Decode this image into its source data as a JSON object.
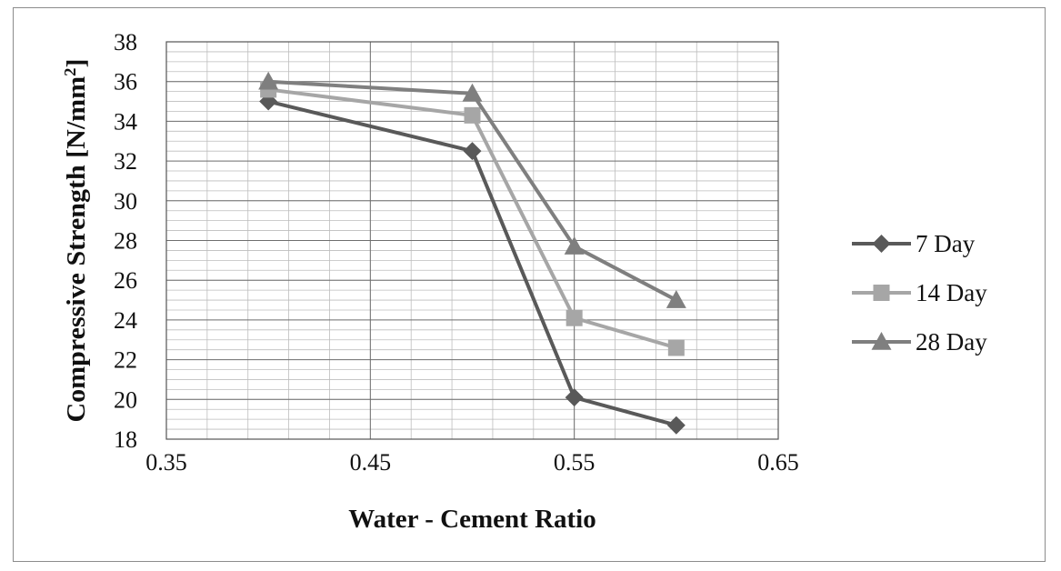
{
  "chart_data": {
    "type": "line",
    "title": "",
    "xlabel": "Water - Cement Ratio",
    "ylabel_main": "Compressive Strength [N/mm",
    "ylabel_sup": "2",
    "ylabel_close": "]",
    "xlim": [
      0.35,
      0.65
    ],
    "ylim": [
      18,
      38
    ],
    "x_ticks": [
      "0.35",
      "0.45",
      "0.55",
      "0.65"
    ],
    "y_ticks": [
      "18",
      "20",
      "22",
      "24",
      "26",
      "28",
      "30",
      "32",
      "34",
      "36",
      "38"
    ],
    "grid": true,
    "legend_position": "right",
    "x": [
      0.4,
      0.5,
      0.55,
      0.6
    ],
    "series": [
      {
        "name": "7 Day",
        "marker": "diamond",
        "color": "#595959",
        "values": [
          35.0,
          32.5,
          20.1,
          18.7
        ]
      },
      {
        "name": "14 Day",
        "marker": "square",
        "color": "#a6a6a6",
        "values": [
          35.6,
          34.3,
          24.1,
          22.6
        ]
      },
      {
        "name": "28 Day",
        "marker": "triangle",
        "color": "#7f7f7f",
        "values": [
          36.0,
          35.4,
          27.7,
          25.0
        ]
      }
    ]
  }
}
